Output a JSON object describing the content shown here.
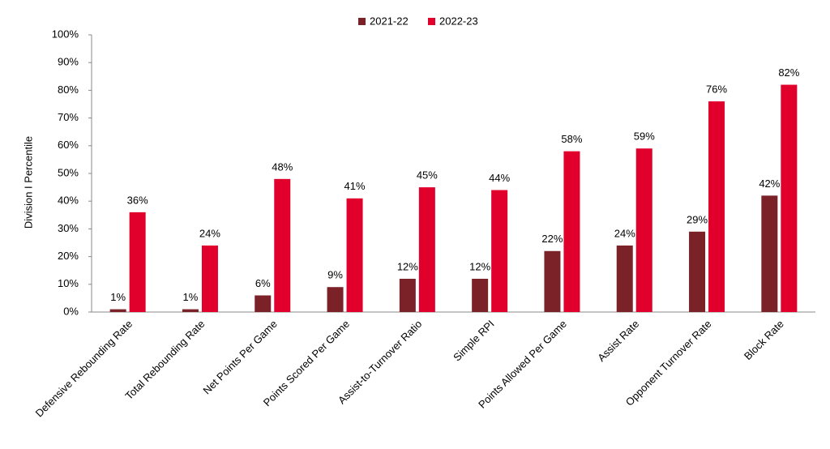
{
  "chart_data": {
    "type": "bar",
    "y_label": "Division I Percentile",
    "categories": [
      "Defensive Rebounding Rate",
      "Total Rebounding Rate",
      "Net Points Per Game",
      "Points Scored Per Game",
      "Assist-to-Turnover Ratio",
      "Simple RPI",
      "Points Allowed Per Game",
      "Assist Rate",
      "Opponent Turnover Rate",
      "Block Rate"
    ],
    "series": [
      {
        "name": "2021-22",
        "color": "#7b2128",
        "values": [
          1,
          1,
          6,
          9,
          12,
          12,
          22,
          24,
          29,
          42
        ],
        "value_labels": [
          "1%",
          "1%",
          "6%",
          "9%",
          "12%",
          "12%",
          "22%",
          "24%",
          "29%",
          "42%"
        ]
      },
      {
        "name": "2022-23",
        "color": "#e0002b",
        "values": [
          36,
          24,
          48,
          41,
          45,
          44,
          58,
          59,
          76,
          82
        ],
        "value_labels": [
          "36%",
          "24%",
          "48%",
          "41%",
          "45%",
          "44%",
          "58%",
          "59%",
          "76%",
          "82%"
        ]
      }
    ],
    "ylim": [
      0,
      100
    ],
    "yticks": [
      {
        "value": 0,
        "label": "0%"
      },
      {
        "value": 10,
        "label": "10%"
      },
      {
        "value": 20,
        "label": "20%"
      },
      {
        "value": 30,
        "label": "30%"
      },
      {
        "value": 40,
        "label": "40%"
      },
      {
        "value": 50,
        "label": "50%"
      },
      {
        "value": 60,
        "label": "60%"
      },
      {
        "value": 70,
        "label": "70%"
      },
      {
        "value": 80,
        "label": "80%"
      },
      {
        "value": 90,
        "label": "90%"
      },
      {
        "value": 100,
        "label": "100%"
      }
    ],
    "legend": "top",
    "grid": false
  }
}
